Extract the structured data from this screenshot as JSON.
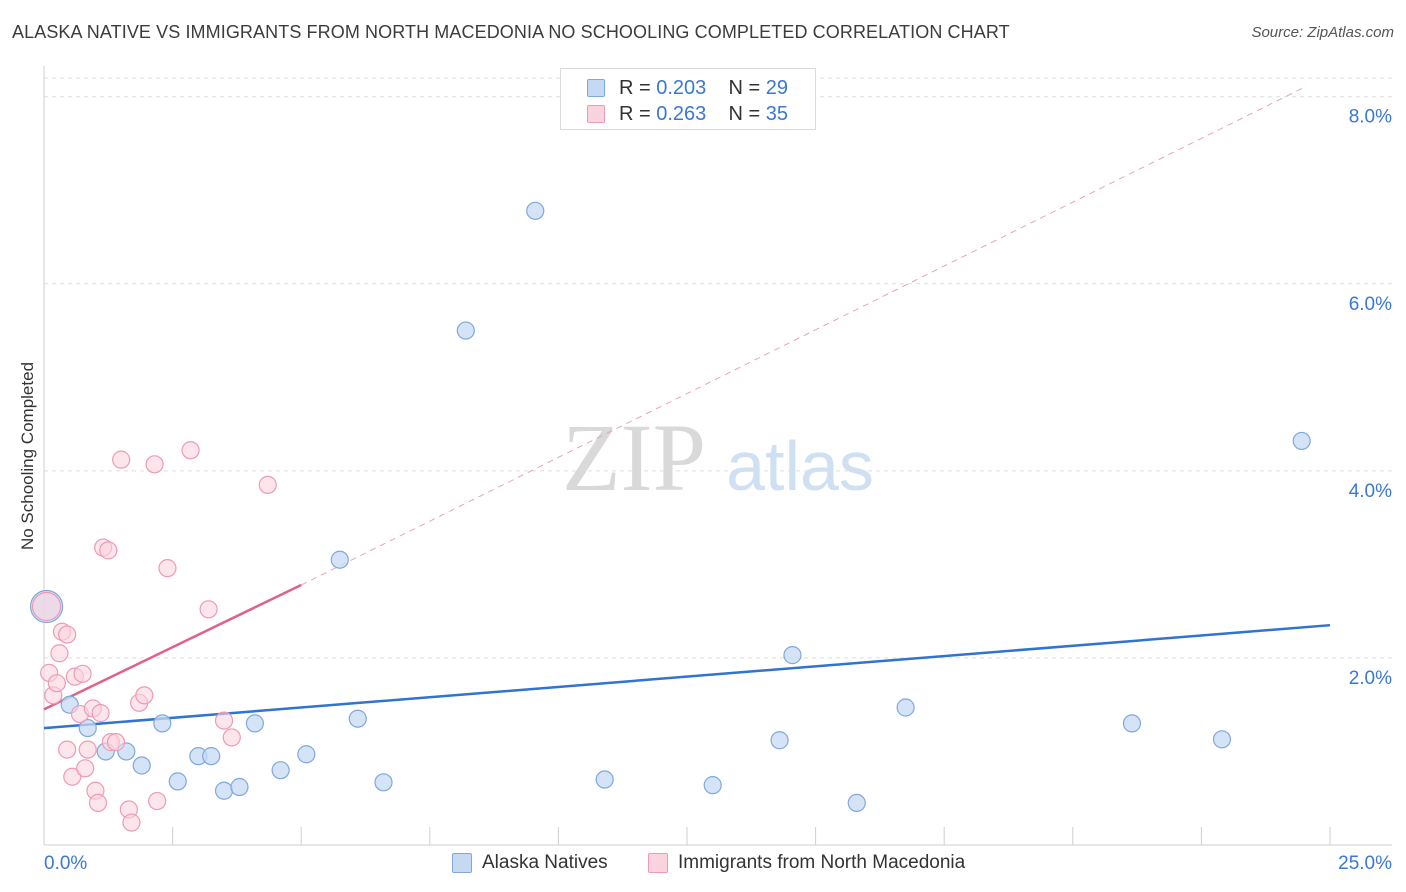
{
  "header": {
    "title": "ALASKA NATIVE VS IMMIGRANTS FROM NORTH MACEDONIA NO SCHOOLING COMPLETED CORRELATION CHART",
    "source": "Source: ZipAtlas.com"
  },
  "watermark": {
    "zip": "ZIP",
    "atlas": "atlas"
  },
  "legend_top": {
    "rows": [
      {
        "r_label": "R =",
        "r_value": "0.203",
        "n_label": "N =",
        "n_value": "29"
      },
      {
        "r_label": "R =",
        "r_value": "0.263",
        "n_label": "N =",
        "n_value": "35"
      }
    ]
  },
  "legend_bottom": {
    "series_a": "Alaska Natives",
    "series_b": "Immigrants from North Macedonia"
  },
  "colors": {
    "blue_fill": "#c5d9f3",
    "blue_stroke": "#7fa8de",
    "blue_line": "#2f74d0",
    "pink_fill": "#fbd3df",
    "pink_stroke": "#ee9ab4",
    "pink_line": "#e0618a",
    "tick_text": "#3a78d4",
    "grid": "#dedede"
  },
  "chart_data": {
    "type": "scatter",
    "title": "ALASKA NATIVE VS IMMIGRANTS FROM NORTH MACEDONIA NO SCHOOLING COMPLETED CORRELATION CHART",
    "xlabel": "",
    "ylabel": "No Schooling Completed",
    "xlim": [
      0,
      25
    ],
    "ylim": [
      0,
      8.2
    ],
    "x_tick_labels": [
      "0.0%",
      "25.0%"
    ],
    "y_ticks": [
      2,
      4,
      6,
      8
    ],
    "y_tick_labels": [
      "2.0%",
      "4.0%",
      "6.0%",
      "8.0%"
    ],
    "grid": true,
    "legend_position": "top-center",
    "series": [
      {
        "name": "Alaska Natives",
        "r": 0.203,
        "n": 29,
        "trend": {
          "x": [
            0,
            25
          ],
          "y": [
            1.25,
            2.35
          ],
          "dashed_extension": false
        },
        "points": [
          {
            "x": 0.05,
            "y": 2.55,
            "big": true
          },
          {
            "x": 0.5,
            "y": 1.5
          },
          {
            "x": 0.85,
            "y": 1.25
          },
          {
            "x": 1.2,
            "y": 1.0
          },
          {
            "x": 1.6,
            "y": 1.0
          },
          {
            "x": 1.9,
            "y": 0.85
          },
          {
            "x": 2.3,
            "y": 1.3
          },
          {
            "x": 2.6,
            "y": 0.68
          },
          {
            "x": 3.0,
            "y": 0.95
          },
          {
            "x": 3.25,
            "y": 0.95
          },
          {
            "x": 3.5,
            "y": 0.58
          },
          {
            "x": 3.8,
            "y": 0.62
          },
          {
            "x": 4.1,
            "y": 1.3
          },
          {
            "x": 4.6,
            "y": 0.8
          },
          {
            "x": 5.1,
            "y": 0.97
          },
          {
            "x": 5.75,
            "y": 3.05
          },
          {
            "x": 6.1,
            "y": 1.35
          },
          {
            "x": 6.6,
            "y": 0.67
          },
          {
            "x": 8.2,
            "y": 5.5
          },
          {
            "x": 9.55,
            "y": 6.78
          },
          {
            "x": 10.9,
            "y": 0.7
          },
          {
            "x": 13.0,
            "y": 0.64
          },
          {
            "x": 14.3,
            "y": 1.12
          },
          {
            "x": 14.55,
            "y": 2.03
          },
          {
            "x": 15.8,
            "y": 0.45
          },
          {
            "x": 16.75,
            "y": 1.47
          },
          {
            "x": 21.15,
            "y": 1.3
          },
          {
            "x": 22.9,
            "y": 1.13
          },
          {
            "x": 24.45,
            "y": 4.32
          }
        ]
      },
      {
        "name": "Immigrants from North Macedonia",
        "r": 0.263,
        "n": 35,
        "trend": {
          "x": [
            0,
            5.0
          ],
          "y": [
            1.45,
            2.78
          ],
          "dashed_extension": {
            "x": [
              5.0,
              24.5
            ],
            "y": [
              2.78,
              8.1
            ]
          }
        },
        "points": [
          {
            "x": 0.05,
            "y": 2.55,
            "big": true
          },
          {
            "x": 0.1,
            "y": 1.84
          },
          {
            "x": 0.18,
            "y": 1.6
          },
          {
            "x": 0.25,
            "y": 1.73
          },
          {
            "x": 0.3,
            "y": 2.05
          },
          {
            "x": 0.35,
            "y": 2.28
          },
          {
            "x": 0.45,
            "y": 2.25
          },
          {
            "x": 0.45,
            "y": 1.02
          },
          {
            "x": 0.55,
            "y": 0.73
          },
          {
            "x": 0.6,
            "y": 1.8
          },
          {
            "x": 0.7,
            "y": 1.4
          },
          {
            "x": 0.75,
            "y": 1.83
          },
          {
            "x": 0.8,
            "y": 0.82
          },
          {
            "x": 0.85,
            "y": 1.02
          },
          {
            "x": 0.95,
            "y": 1.46
          },
          {
            "x": 1.0,
            "y": 0.58
          },
          {
            "x": 1.05,
            "y": 0.45
          },
          {
            "x": 1.1,
            "y": 1.41
          },
          {
            "x": 1.15,
            "y": 3.18
          },
          {
            "x": 1.25,
            "y": 3.15
          },
          {
            "x": 1.3,
            "y": 1.1
          },
          {
            "x": 1.4,
            "y": 1.1
          },
          {
            "x": 1.5,
            "y": 4.12
          },
          {
            "x": 1.65,
            "y": 0.38
          },
          {
            "x": 1.7,
            "y": 0.24
          },
          {
            "x": 1.85,
            "y": 1.52
          },
          {
            "x": 1.95,
            "y": 1.6
          },
          {
            "x": 2.15,
            "y": 4.07
          },
          {
            "x": 2.2,
            "y": 0.47
          },
          {
            "x": 2.4,
            "y": 2.96
          },
          {
            "x": 2.85,
            "y": 4.22
          },
          {
            "x": 3.2,
            "y": 2.52
          },
          {
            "x": 3.5,
            "y": 1.33
          },
          {
            "x": 3.65,
            "y": 1.15
          },
          {
            "x": 4.35,
            "y": 3.85
          }
        ]
      }
    ]
  }
}
